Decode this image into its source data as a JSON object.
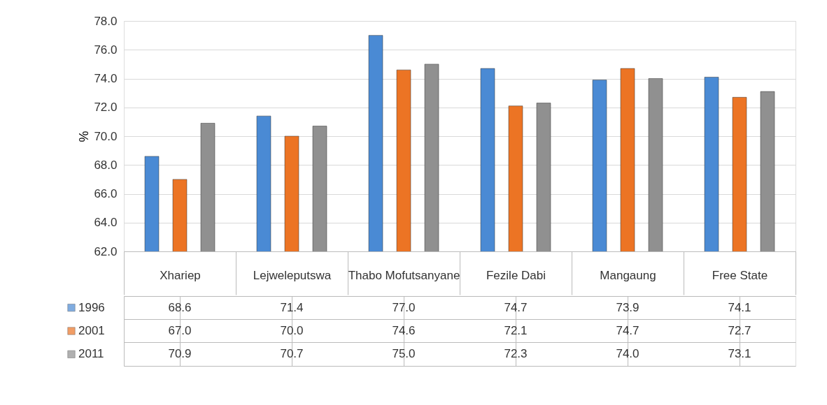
{
  "chart_data": {
    "type": "bar",
    "ylabel": "%",
    "categories": [
      "Xhariep",
      "Lejweleputswa",
      "Thabo Mofutsanyane",
      "Fezile Dabi",
      "Mangaung",
      "Free State"
    ],
    "series": [
      {
        "name": "1996",
        "color": "#4a8ad4",
        "values": [
          68.6,
          71.4,
          77.0,
          74.7,
          73.9,
          74.1
        ],
        "value_labels": [
          "68.6",
          "71.4",
          "77.0",
          "74.7",
          "73.9",
          "74.1"
        ]
      },
      {
        "name": "2001",
        "color": "#ec7424",
        "values": [
          67.0,
          70.0,
          74.6,
          72.1,
          74.7,
          72.7
        ],
        "value_labels": [
          "67.0",
          "70.0",
          "74.6",
          "72.1",
          "74.7",
          "72.7"
        ]
      },
      {
        "name": "2011",
        "color": "#909090",
        "values": [
          70.9,
          70.7,
          75.0,
          72.3,
          74.0,
          73.1
        ],
        "value_labels": [
          "70.9",
          "70.7",
          "75.0",
          "72.3",
          "74.0",
          "73.1"
        ]
      }
    ],
    "ylim": [
      62,
      78
    ],
    "yticks": [
      {
        "value": 62,
        "label": "62.0"
      },
      {
        "value": 64,
        "label": "64.0"
      },
      {
        "value": 66,
        "label": "66.0"
      },
      {
        "value": 68,
        "label": "68.0"
      },
      {
        "value": 70,
        "label": "70.0"
      },
      {
        "value": 72,
        "label": "72.0"
      },
      {
        "value": 74,
        "label": "74.0"
      },
      {
        "value": 76,
        "label": "76.0"
      },
      {
        "value": 78,
        "label": "78.0"
      }
    ],
    "grid": "y",
    "legend": "bottom"
  }
}
